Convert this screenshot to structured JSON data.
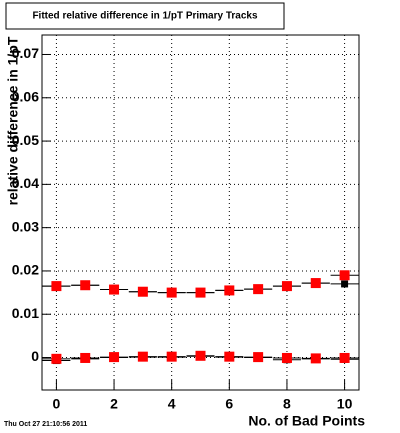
{
  "chart_data": {
    "type": "scatter",
    "title": "Fitted relative difference in 1/pT Primary Tracks",
    "x_label": "No. of Bad Points",
    "y_label": "relative difference in 1/pT",
    "timestamp": "Thu Oct 27 21:10:56 2011",
    "x": [
      0,
      1,
      2,
      3,
      4,
      5,
      6,
      7,
      8,
      9,
      10
    ],
    "series": [
      {
        "color": "#000000",
        "values": [
          0.0165,
          0.0167,
          0.0157,
          0.0152,
          0.015,
          0.015,
          0.0155,
          0.0158,
          0.0165,
          0.0172,
          0.017
        ]
      },
      {
        "color": "#ff0000",
        "values": [
          0.0165,
          0.0167,
          0.0157,
          0.0152,
          0.015,
          0.015,
          0.0155,
          0.0158,
          0.0165,
          0.0172,
          0.019
        ]
      },
      {
        "color": "#000000",
        "values": [
          -0.0007,
          -0.0003,
          0.0,
          0.0001,
          0.0001,
          0.0003,
          0.0001,
          0.0,
          -0.0005,
          -0.0003,
          -0.0004
        ]
      },
      {
        "color": "#ff0000",
        "values": [
          -0.0003,
          -0.0001,
          0.0001,
          0.0002,
          0.0002,
          0.0004,
          0.0002,
          0.0001,
          -0.0001,
          -0.0002,
          -0.0001
        ]
      }
    ],
    "xlim": [
      -0.5,
      10.5
    ],
    "xticks": [
      0,
      2,
      4,
      6,
      8,
      10
    ],
    "ylim": [
      -0.0075,
      0.0745
    ],
    "yticks": [
      0,
      0.01,
      0.02,
      0.03,
      0.04,
      0.05,
      0.06,
      0.07
    ],
    "grid": true
  }
}
